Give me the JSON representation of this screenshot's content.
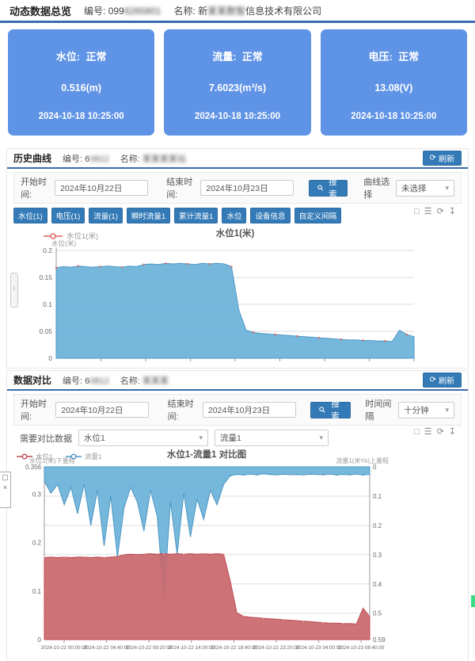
{
  "header": {
    "title": "动态数据总览",
    "no_label": "编号:",
    "no_prefix": "099",
    "no_blur": "6265801",
    "name_label": "名称:",
    "name_prefix": "新",
    "name_blur": "某某数智",
    "name_suffix": "信息技术有限公司"
  },
  "cards": [
    {
      "label": "水位:",
      "status": "正常",
      "value": "0.516(m)",
      "time": "2024-10-18 10:25:00"
    },
    {
      "label": "流量:",
      "status": "正常",
      "value": "7.6023(m³/s)",
      "time": "2024-10-18 10:25:00"
    },
    {
      "label": "电压:",
      "status": "正常",
      "value": "13.08(V)",
      "time": "2024-10-18 10:25:00"
    }
  ],
  "history": {
    "title": "历史曲线",
    "no_label": "编号:",
    "no_prefix": "6",
    "no_blur": "0812",
    "name_label": "名称:",
    "name_blur": "某某某某站",
    "refresh": "刷新",
    "start_label": "开始时间:",
    "start_value": "2024年10月22日",
    "end_label": "结束时间:",
    "end_value": "2024年10月23日",
    "search": "搜索",
    "select_label": "曲线选择",
    "select_value": "未选择",
    "buttons": [
      "水位(1)",
      "电压(1)",
      "流量(1)",
      "瞬时流量1",
      "累计流量1",
      "水位",
      "设备信息",
      "自定义间隔"
    ]
  },
  "compare": {
    "title": "数据对比",
    "no_label": "编号:",
    "no_prefix": "6",
    "no_blur": "0812",
    "name_label": "名称:",
    "name_blur": "某某某",
    "refresh": "刷新",
    "start_label": "开始时间:",
    "start_value": "2024年10月22日",
    "end_label": "结束时间:",
    "end_value": "2024年10月23日",
    "search": "搜索",
    "interval_label": "时间间隔",
    "interval_value": "十分钟",
    "compare_label": "需要对比数据",
    "compare_value1": "水位1",
    "compare_value2": "流量1"
  },
  "icons": {
    "refresh": "⟳",
    "caret": "▾",
    "close": "×",
    "pager_dots": "⋮",
    "toolbox": [
      "□",
      "☰",
      "⟳",
      "↧"
    ]
  },
  "colors": {
    "accent_blue": "#337ab7",
    "card_blue": "#5f93e6",
    "bar_blue": "#3a6bac",
    "area_blue": "#6fb3da",
    "line_blue": "#4e97c4",
    "marker_red": "#e0635c",
    "area_red": "#c9676b",
    "line_red": "#bb4a50",
    "green_corner": "#3ddc84"
  },
  "chart_data": [
    {
      "type": "area",
      "title": "水位1(米)",
      "legend": [
        "水位1(米)"
      ],
      "ylabel": "水位(米)",
      "ylim": [
        0,
        0.2
      ],
      "yticks": [
        0,
        0.05,
        0.1,
        0.15,
        0.2
      ],
      "x_labels": [],
      "grid": true,
      "legend_position": "top-left",
      "series": [
        {
          "name": "水位1",
          "area": "#6fb3da",
          "line": "#4e97c4",
          "marker": "#e0635c",
          "values": [
            0.168,
            0.17,
            0.169,
            0.171,
            0.17,
            0.169,
            0.17,
            0.171,
            0.17,
            0.169,
            0.171,
            0.17,
            0.174,
            0.175,
            0.174,
            0.176,
            0.175,
            0.176,
            0.175,
            0.174,
            0.176,
            0.175,
            0.176,
            0.175,
            0.17,
            0.09,
            0.052,
            0.048,
            0.046,
            0.045,
            0.044,
            0.043,
            0.042,
            0.041,
            0.04,
            0.039,
            0.038,
            0.037,
            0.036,
            0.035,
            0.034,
            0.034,
            0.033,
            0.033,
            0.032,
            0.032,
            0.031,
            0.052,
            0.044,
            0.04
          ]
        }
      ]
    },
    {
      "type": "area",
      "title": "水位1-流量1 对比图",
      "legend": [
        "水位1",
        "流量1"
      ],
      "left_axis": {
        "name": "水位1(米)下量程",
        "range": [
          0,
          0.356
        ],
        "ticks": [
          0.356,
          0.3,
          0.2,
          0.1,
          0
        ]
      },
      "right_axis": {
        "name": "流量1(米³/s)上量程",
        "range": [
          0,
          0.59
        ],
        "inverted": true,
        "ticks": [
          0,
          0.1,
          0.2,
          0.3,
          0.4,
          0.5
        ],
        "bottom_tick": "0.59"
      },
      "x_labels": [
        "2024-10-22 00:00:00",
        "2024-10-22 04:40:00",
        "2024-10-22 09:20:00",
        "2024-10-22 14:00:00",
        "2024-10-22 18:40:00",
        "2024-10-22 23:20:00",
        "2024-10-23 04:00:00",
        "2024-10-23 08:40:00"
      ],
      "grid": true,
      "legend_position": "top-left",
      "series": [
        {
          "name": "流量1",
          "axis": "right",
          "baseline": "top",
          "area": "#6fb3da",
          "line": "#4e97c4",
          "marker": "#2e7fb0",
          "values": [
            0.05,
            0.09,
            0.06,
            0.13,
            0.07,
            0.16,
            0.06,
            0.2,
            0.08,
            0.27,
            0.1,
            0.31,
            0.14,
            0.07,
            0.12,
            0.22,
            0.08,
            0.17,
            0.45,
            0.12,
            0.3,
            0.09,
            0.24,
            0.11,
            0.18,
            0.08,
            0.13,
            0.06,
            0.03,
            0.026,
            0.028,
            0.025,
            0.027,
            0.024,
            0.026,
            0.028,
            0.025,
            0.027,
            0.026,
            0.028,
            0.025,
            0.026,
            0.027,
            0.025,
            0.028,
            0.026,
            0.027,
            0.025,
            0.028,
            0.026
          ]
        },
        {
          "name": "水位1",
          "axis": "left",
          "baseline": "bottom",
          "area": "#c9676b",
          "line": "#bb4a50",
          "marker": "#eaa6a4",
          "values": [
            0.169,
            0.17,
            0.169,
            0.17,
            0.169,
            0.17,
            0.17,
            0.169,
            0.17,
            0.169,
            0.17,
            0.171,
            0.175,
            0.176,
            0.175,
            0.176,
            0.177,
            0.176,
            0.177,
            0.176,
            0.177,
            0.176,
            0.177,
            0.176,
            0.177,
            0.176,
            0.177,
            0.176,
            0.12,
            0.055,
            0.048,
            0.046,
            0.045,
            0.044,
            0.043,
            0.042,
            0.041,
            0.04,
            0.039,
            0.038,
            0.037,
            0.036,
            0.035,
            0.034,
            0.034,
            0.033,
            0.033,
            0.032,
            0.065,
            0.047
          ]
        }
      ]
    }
  ]
}
